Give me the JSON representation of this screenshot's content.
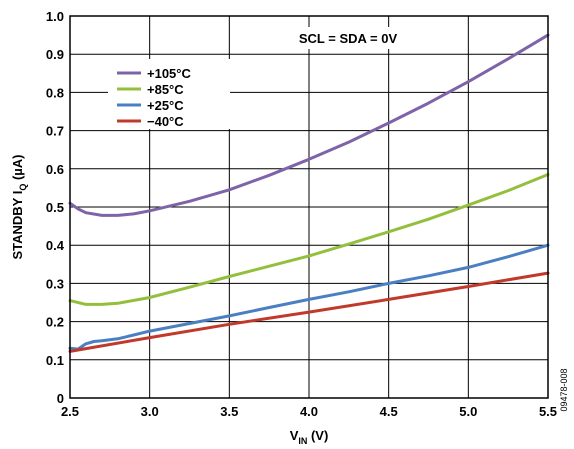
{
  "chart_data": {
    "type": "line",
    "xlabel_main": "V",
    "xlabel_sub": "IN",
    "xlabel_unit": " (V)",
    "ylabel_main": "STANDBY I",
    "ylabel_sub": "Q",
    "ylabel_unit": " (µA)",
    "xlim": [
      2.5,
      5.5
    ],
    "ylim": [
      0,
      1.0
    ],
    "xticks": [
      "2.5",
      "3.0",
      "3.5",
      "4.0",
      "4.5",
      "5.0",
      "5.5"
    ],
    "yticks": [
      "0",
      "0.1",
      "0.2",
      "0.3",
      "0.4",
      "0.5",
      "0.6",
      "0.7",
      "0.8",
      "0.9",
      "1.0"
    ],
    "grid": true,
    "annotation": "SCL = SDA = 0V",
    "legend_position": "top-left",
    "series": [
      {
        "name": "+105°C",
        "color": "#7f63a8",
        "x": [
          2.5,
          2.55,
          2.6,
          2.7,
          2.8,
          2.9,
          3.0,
          3.25,
          3.5,
          3.75,
          4.0,
          4.25,
          4.5,
          4.75,
          5.0,
          5.25,
          5.5
        ],
        "y": [
          0.51,
          0.495,
          0.485,
          0.478,
          0.478,
          0.482,
          0.49,
          0.515,
          0.545,
          0.583,
          0.625,
          0.67,
          0.72,
          0.772,
          0.828,
          0.888,
          0.95
        ]
      },
      {
        "name": "+85°C",
        "color": "#93bf3c",
        "x": [
          2.5,
          2.6,
          2.7,
          2.8,
          3.0,
          3.25,
          3.5,
          3.75,
          4.0,
          4.25,
          4.5,
          4.75,
          5.0,
          5.25,
          5.5
        ],
        "y": [
          0.255,
          0.245,
          0.245,
          0.248,
          0.263,
          0.29,
          0.318,
          0.345,
          0.372,
          0.403,
          0.435,
          0.468,
          0.505,
          0.543,
          0.585
        ]
      },
      {
        "name": "+25°C",
        "color": "#4a7fc1",
        "x": [
          2.5,
          2.55,
          2.6,
          2.65,
          2.7,
          2.8,
          2.9,
          3.0,
          3.25,
          3.5,
          3.75,
          4.0,
          4.25,
          4.5,
          4.75,
          5.0,
          5.25,
          5.5
        ],
        "y": [
          0.13,
          0.128,
          0.142,
          0.148,
          0.15,
          0.155,
          0.165,
          0.175,
          0.195,
          0.215,
          0.237,
          0.258,
          0.278,
          0.3,
          0.32,
          0.342,
          0.37,
          0.4
        ]
      },
      {
        "name": "−40°C",
        "color": "#c0392b",
        "x": [
          2.5,
          3.0,
          3.5,
          4.0,
          4.5,
          5.0,
          5.5
        ],
        "y": [
          0.122,
          0.158,
          0.193,
          0.225,
          0.258,
          0.292,
          0.327
        ]
      }
    ]
  },
  "figure_id": "09478-008"
}
